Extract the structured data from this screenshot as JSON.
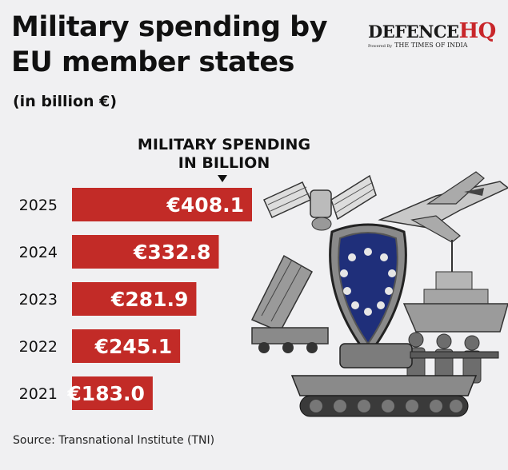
{
  "header": {
    "title": "Military spending by EU member states",
    "subtitle": "(in billion €)"
  },
  "brand": {
    "name_main": "DEFENCE",
    "name_accent": "HQ",
    "powered_by": "Powered By",
    "publisher": "THE TIMES OF INDIA"
  },
  "chart_header": {
    "line1": "MILITARY SPENDING",
    "line2": "IN BILLION"
  },
  "source": "Source: Transnational Institute (TNI)",
  "colors": {
    "bar": "#c22b27",
    "background": "#f0f0f2",
    "accent": "#c8262a"
  },
  "illustration": [
    "satellite-icon",
    "fighter-jet-icon",
    "shield-icon",
    "missile-launcher-icon",
    "warship-icon",
    "tank-icon",
    "soldiers-icon"
  ],
  "chart_data": {
    "type": "bar",
    "orientation": "horizontal",
    "title": "Military spending by EU member states",
    "subtitle": "(in billion €)",
    "categories": [
      "2025",
      "2024",
      "2023",
      "2022",
      "2021"
    ],
    "values": [
      408.1,
      332.8,
      281.9,
      245.1,
      183.0
    ],
    "value_labels": [
      "€408.1",
      "€332.8",
      "€281.9",
      "€245.1",
      "€183.0"
    ],
    "xlabel": "",
    "ylabel": "",
    "grid": false,
    "legend": "none"
  }
}
